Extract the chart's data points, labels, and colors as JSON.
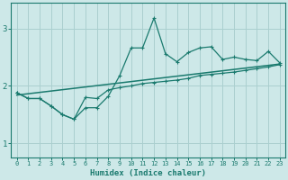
{
  "xlabel": "Humidex (Indice chaleur)",
  "bg_color": "#cde8e8",
  "line_color": "#1a7a6e",
  "grid_color": "#aacfcf",
  "xlim": [
    -0.5,
    23.5
  ],
  "ylim": [
    0.75,
    3.45
  ],
  "xticks": [
    0,
    1,
    2,
    3,
    4,
    5,
    6,
    7,
    8,
    9,
    10,
    11,
    12,
    13,
    14,
    15,
    16,
    17,
    18,
    19,
    20,
    21,
    22,
    23
  ],
  "yticks": [
    1,
    2,
    3
  ],
  "upper_x": [
    0,
    1,
    2,
    3,
    4,
    5,
    6,
    7,
    8,
    9,
    10,
    11,
    12,
    13,
    14,
    15,
    16,
    17,
    18,
    19,
    20,
    21,
    22,
    23
  ],
  "upper_y": [
    1.88,
    1.78,
    1.78,
    1.65,
    1.5,
    1.42,
    1.62,
    1.62,
    1.82,
    2.18,
    2.66,
    2.66,
    3.18,
    2.56,
    2.42,
    2.58,
    2.66,
    2.68,
    2.46,
    2.5,
    2.46,
    2.44,
    2.6,
    2.4
  ],
  "lower_x": [
    0,
    1,
    2,
    3,
    4,
    5,
    6,
    7,
    8,
    9,
    10,
    11,
    12,
    13,
    14,
    15,
    16,
    17,
    18,
    19,
    20,
    21,
    22,
    23
  ],
  "lower_y": [
    1.88,
    1.78,
    1.78,
    1.65,
    1.5,
    1.42,
    1.8,
    1.78,
    1.93,
    1.97,
    2.0,
    2.04,
    2.06,
    2.08,
    2.1,
    2.13,
    2.18,
    2.2,
    2.22,
    2.24,
    2.27,
    2.3,
    2.33,
    2.37
  ],
  "trend_x": [
    0,
    23
  ],
  "trend_y": [
    1.84,
    2.38
  ]
}
